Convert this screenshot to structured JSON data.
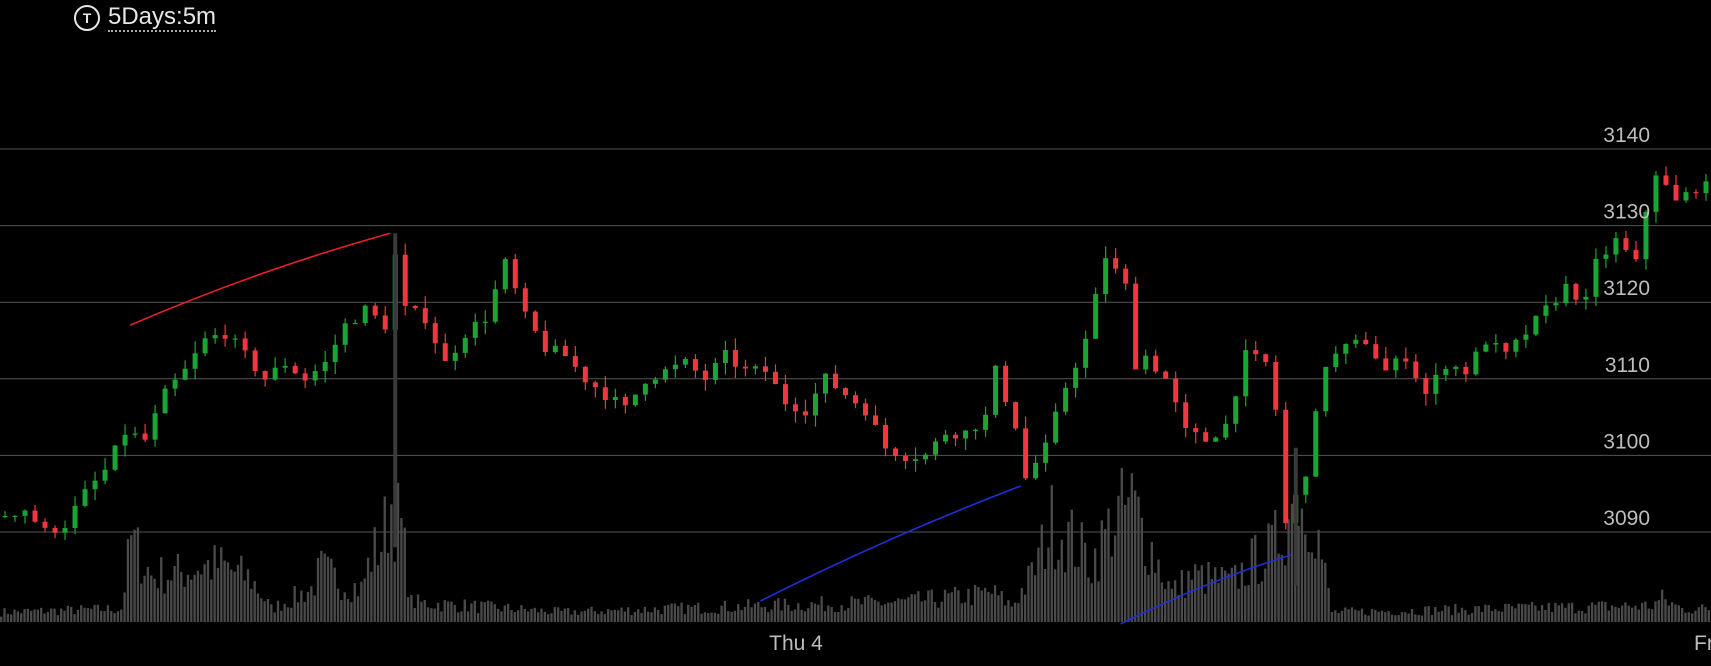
{
  "header": {
    "icon": "T",
    "period_label": "5Days:5m"
  },
  "colors": {
    "background": "#000000",
    "up": "#19a533",
    "down": "#f2353f",
    "volume": "#4a4a4a",
    "grid": "#555555",
    "trend_red": "#e8202a",
    "trend_blue": "#1f2fd6"
  },
  "chart_data": {
    "type": "candlestick",
    "interval": "5m",
    "range": "5Days",
    "ylim": [
      3078,
      3146
    ],
    "y_ticks": [
      3090,
      3100,
      3110,
      3120,
      3130,
      3140
    ],
    "x_labels": [
      "Thu 4",
      "Fri"
    ],
    "grid": true,
    "price_path": [
      [
        0,
        3092
      ],
      [
        3,
        3093
      ],
      [
        5,
        3090
      ],
      [
        7,
        3091
      ],
      [
        9,
        3095
      ],
      [
        11,
        3098
      ],
      [
        13,
        3103
      ],
      [
        15,
        3102
      ],
      [
        17,
        3108
      ],
      [
        19,
        3111
      ],
      [
        21,
        3115
      ],
      [
        23,
        3116
      ],
      [
        25,
        3113
      ],
      [
        27,
        3110
      ],
      [
        29,
        3112
      ],
      [
        31,
        3110
      ],
      [
        33,
        3112
      ],
      [
        35,
        3117
      ],
      [
        37,
        3119
      ],
      [
        39,
        3117
      ],
      [
        40,
        3126
      ],
      [
        41,
        3119
      ],
      [
        43,
        3118
      ],
      [
        45,
        3112
      ],
      [
        47,
        3116
      ],
      [
        49,
        3118
      ],
      [
        51,
        3125
      ],
      [
        53,
        3118
      ],
      [
        55,
        3114
      ],
      [
        57,
        3113
      ],
      [
        59,
        3110
      ],
      [
        61,
        3108
      ],
      [
        63,
        3106
      ],
      [
        65,
        3110
      ],
      [
        67,
        3111
      ],
      [
        69,
        3112
      ],
      [
        71,
        3110
      ],
      [
        73,
        3113
      ],
      [
        75,
        3111
      ],
      [
        77,
        3111
      ],
      [
        79,
        3107
      ],
      [
        81,
        3106
      ],
      [
        83,
        3110
      ],
      [
        85,
        3108
      ],
      [
        87,
        3106
      ],
      [
        89,
        3101
      ],
      [
        91,
        3100
      ],
      [
        93,
        3100
      ],
      [
        95,
        3103
      ],
      [
        97,
        3103
      ],
      [
        99,
        3105
      ],
      [
        100,
        3111
      ],
      [
        102,
        3104
      ],
      [
        103,
        3097
      ],
      [
        105,
        3101
      ],
      [
        107,
        3109
      ],
      [
        109,
        3115
      ],
      [
        111,
        3126
      ],
      [
        113,
        3122
      ],
      [
        114,
        3112
      ],
      [
        115,
        3113
      ],
      [
        117,
        3110
      ],
      [
        119,
        3103
      ],
      [
        121,
        3102
      ],
      [
        123,
        3104
      ],
      [
        125,
        3113
      ],
      [
        127,
        3112
      ],
      [
        128,
        3106
      ],
      [
        129,
        3091
      ],
      [
        131,
        3098
      ],
      [
        133,
        3112
      ],
      [
        135,
        3114
      ],
      [
        137,
        3115
      ],
      [
        139,
        3111
      ],
      [
        141,
        3113
      ],
      [
        143,
        3108
      ],
      [
        145,
        3112
      ],
      [
        147,
        3111
      ],
      [
        149,
        3115
      ],
      [
        151,
        3113
      ],
      [
        153,
        3116
      ],
      [
        155,
        3119
      ],
      [
        157,
        3122
      ],
      [
        159,
        3120
      ],
      [
        160,
        3125
      ],
      [
        162,
        3128
      ],
      [
        164,
        3125
      ],
      [
        165,
        3132
      ],
      [
        166,
        3137
      ],
      [
        168,
        3133
      ],
      [
        170,
        3135
      ]
    ],
    "volume_path": [
      [
        0,
        3
      ],
      [
        12,
        4
      ],
      [
        13,
        25
      ],
      [
        15,
        14
      ],
      [
        18,
        15
      ],
      [
        20,
        17
      ],
      [
        22,
        17
      ],
      [
        25,
        13
      ],
      [
        27,
        4
      ],
      [
        31,
        10
      ],
      [
        32,
        16
      ],
      [
        34,
        12
      ],
      [
        36,
        10
      ],
      [
        37,
        20
      ],
      [
        38,
        24
      ],
      [
        39,
        36
      ],
      [
        40,
        28
      ],
      [
        41,
        6
      ],
      [
        56,
        3
      ],
      [
        77,
        5
      ],
      [
        90,
        6
      ],
      [
        97,
        8
      ],
      [
        99,
        9
      ],
      [
        101,
        5
      ],
      [
        103,
        14
      ],
      [
        105,
        30
      ],
      [
        107,
        25
      ],
      [
        109,
        18
      ],
      [
        111,
        30
      ],
      [
        113,
        36
      ],
      [
        115,
        22
      ],
      [
        117,
        9
      ],
      [
        119,
        14
      ],
      [
        121,
        13
      ],
      [
        123,
        12
      ],
      [
        125,
        18
      ],
      [
        127,
        22
      ],
      [
        129,
        34
      ],
      [
        131,
        36
      ],
      [
        133,
        3
      ],
      [
        165,
        5
      ],
      [
        166,
        7
      ],
      [
        168,
        4
      ]
    ],
    "trend_lines": [
      {
        "color": "red",
        "from": [
          13,
          3117
        ],
        "to": [
          39,
          3129
        ]
      },
      {
        "color": "blue",
        "from": [
          76,
          3081
        ],
        "to": [
          102,
          3096
        ]
      },
      {
        "color": "blue",
        "from": [
          112,
          3078
        ],
        "to": [
          129,
          3087
        ]
      }
    ]
  }
}
